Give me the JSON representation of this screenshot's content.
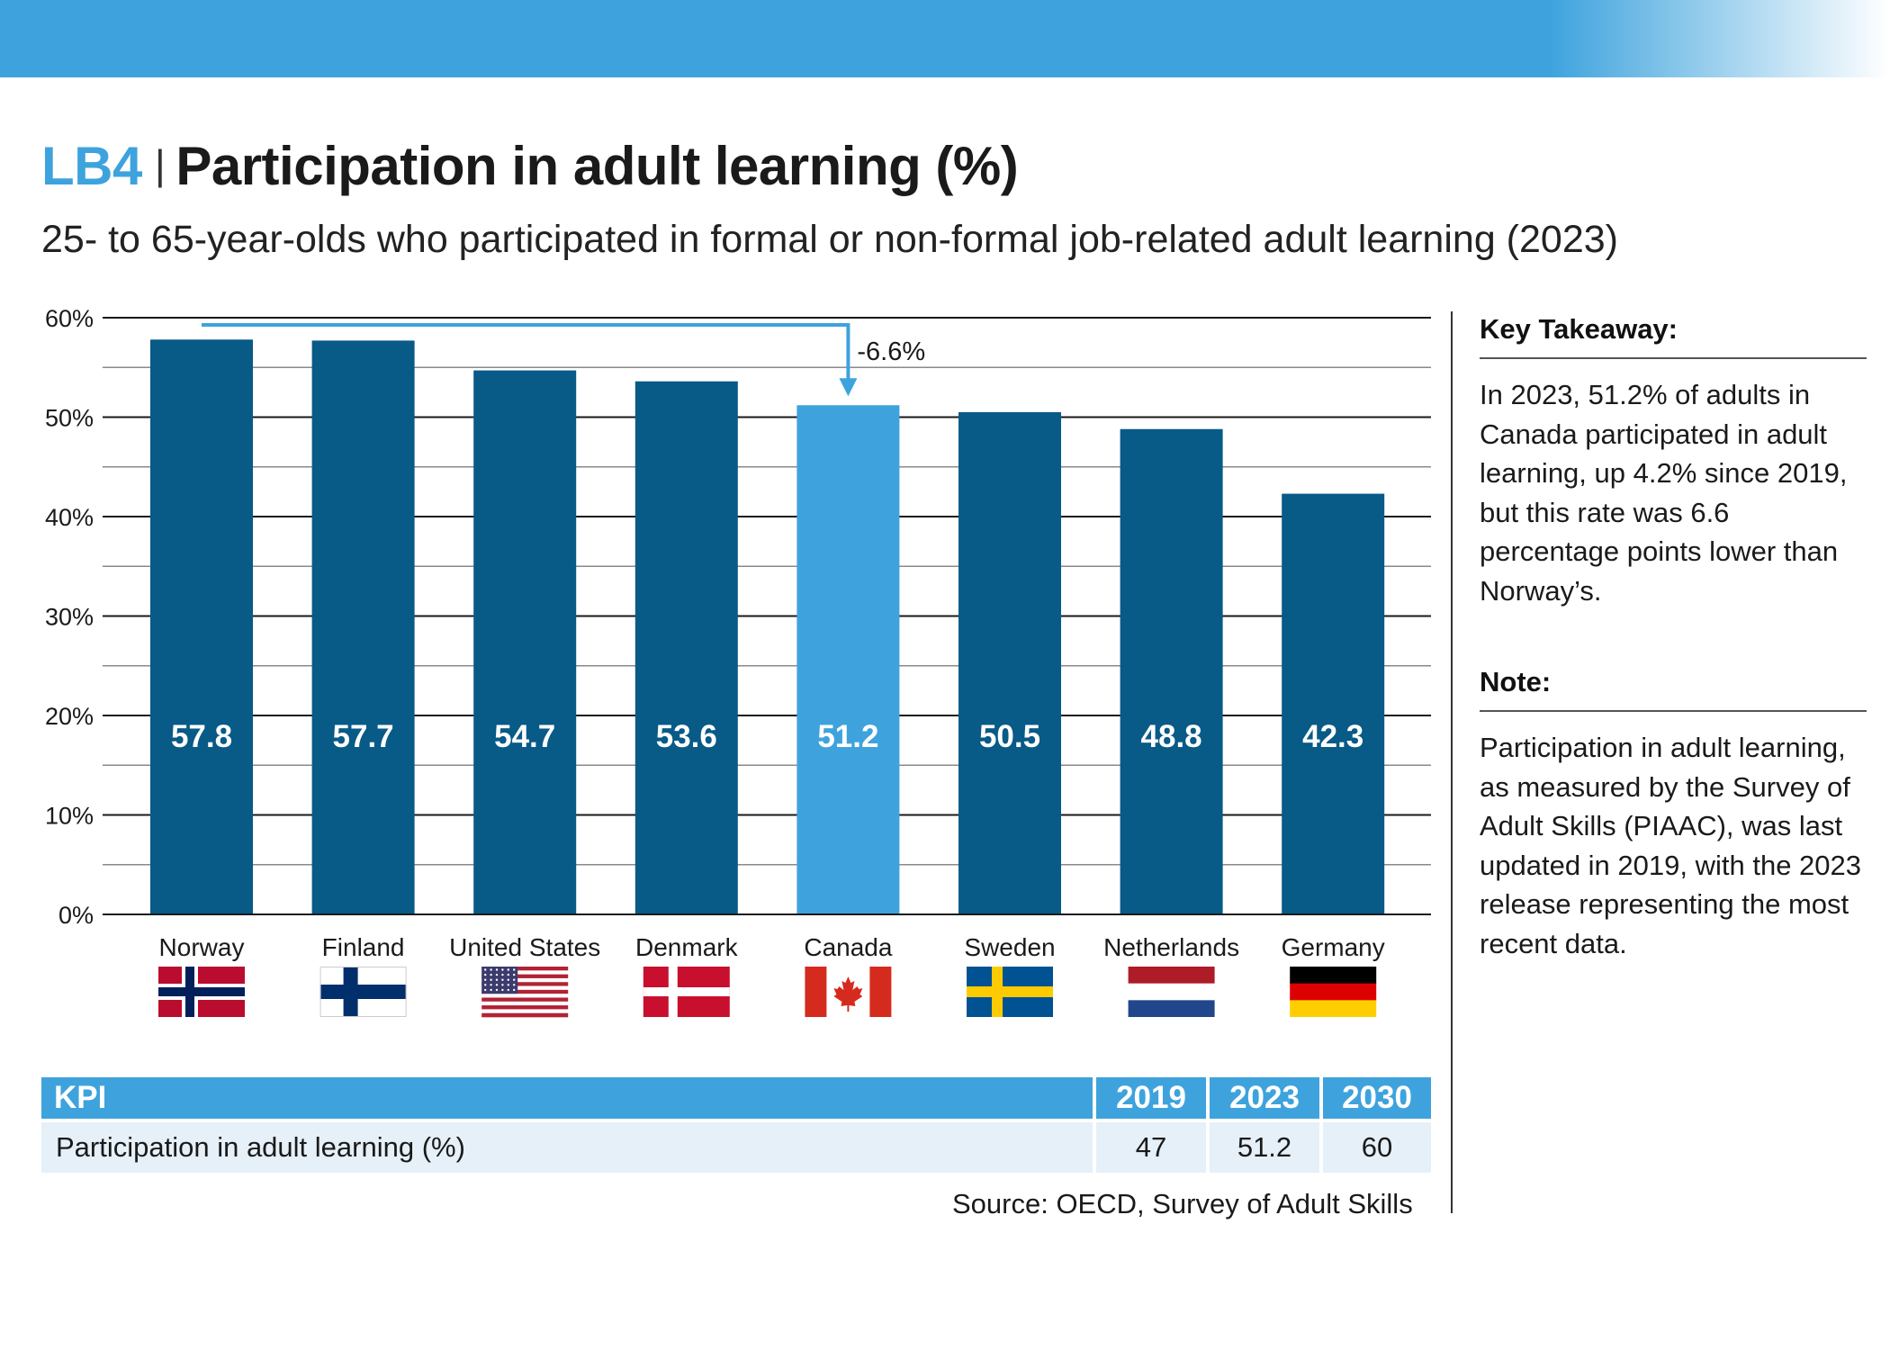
{
  "header": {
    "code": "LB4",
    "separator": "|",
    "title": "Participation in adult learning (%)",
    "subtitle": "25- to 65-year-olds who participated in formal or non-formal job-related adult learning (2023)"
  },
  "colors": {
    "band": "#3ea3dd",
    "bar": "#085a87",
    "highlight_bar": "#3ea3dd",
    "arrow": "#3ea3dd",
    "table_header": "#3ea3dd",
    "table_row": "#e6f0f8"
  },
  "chart_data": {
    "type": "bar",
    "title": "Participation in adult learning (%)",
    "xlabel": "",
    "ylabel": "",
    "ylim": [
      0,
      60
    ],
    "yticks": [
      "0%",
      "10%",
      "20%",
      "30%",
      "40%",
      "50%",
      "60%"
    ],
    "categories": [
      "Norway",
      "Finland",
      "United States",
      "Denmark",
      "Canada",
      "Sweden",
      "Netherlands",
      "Germany"
    ],
    "values": [
      57.8,
      57.7,
      54.7,
      53.6,
      51.2,
      50.5,
      48.8,
      42.3
    ],
    "value_labels": [
      "57.8",
      "57.7",
      "54.7",
      "53.6",
      "51.2",
      "50.5",
      "48.8",
      "42.3"
    ],
    "highlight": "Canada",
    "flags": [
      "norway-flag-icon",
      "finland-flag-icon",
      "united-states-flag-icon",
      "denmark-flag-icon",
      "canada-flag-icon",
      "sweden-flag-icon",
      "netherlands-flag-icon",
      "germany-flag-icon"
    ],
    "annotation": {
      "label": "-6.6%",
      "from": "Norway",
      "to": "Canada"
    }
  },
  "sidebar": {
    "takeaway_heading": "Key Takeaway:",
    "takeaway_text": "In 2023, 51.2% of adults in Canada participated in adult learning, up 4.2% since 2019, but this rate was 6.6 percentage points lower than Norway’s.",
    "note_heading": "Note:",
    "note_text": "Participation in adult learning, as measured by the Survey of Adult Skills (PIAAC), was last updated in 2019, with the 2023 release representing the most recent data."
  },
  "kpi_table": {
    "headers": [
      "KPI",
      "2019",
      "2023",
      "2030"
    ],
    "row": [
      "Participation in adult learning (%)",
      "47",
      "51.2",
      "60"
    ]
  },
  "source": "Source: OECD, Survey of Adult Skills"
}
